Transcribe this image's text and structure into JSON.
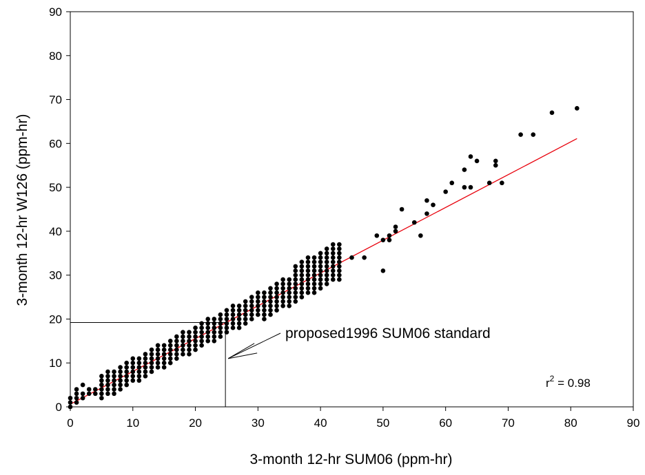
{
  "chart_data": {
    "type": "scatter",
    "title": "",
    "xlabel": "3-month 12-hr SUM06 (ppm-hr)",
    "ylabel": "3-month 12-hr W126 (ppm-hr)",
    "xlim": [
      0,
      90
    ],
    "ylim": [
      0,
      90
    ],
    "xticks": [
      "0",
      "10",
      "20",
      "30",
      "40",
      "50",
      "60",
      "70",
      "80",
      "90"
    ],
    "yticks": [
      "0",
      "10",
      "20",
      "30",
      "40",
      "50",
      "60",
      "70",
      "80",
      "90"
    ],
    "grid": false,
    "point_color": "#000000",
    "trendline": {
      "x": [
        0,
        81
      ],
      "y": [
        0.6,
        61.1
      ],
      "color": "#e8000b"
    },
    "standard": {
      "x": 24.8,
      "y": 19.2
    },
    "annotation": {
      "text": "proposed1996 SUM06 standard"
    },
    "r2": {
      "prefix": "r",
      "sup": "2",
      "text": " = 0.98"
    },
    "points_sparse": [
      [
        0,
        0
      ],
      [
        0,
        1
      ],
      [
        0,
        2
      ],
      [
        1,
        1
      ],
      [
        1,
        2
      ],
      [
        1,
        3
      ],
      [
        1,
        4
      ],
      [
        2,
        2
      ],
      [
        2,
        3
      ],
      [
        2,
        5
      ],
      [
        3,
        3
      ],
      [
        3,
        4
      ],
      [
        4,
        3
      ],
      [
        4,
        4
      ],
      [
        45,
        34
      ],
      [
        47,
        34
      ],
      [
        49,
        39
      ],
      [
        50,
        38
      ],
      [
        50,
        31
      ],
      [
        51,
        38
      ],
      [
        51,
        39
      ],
      [
        52,
        40
      ],
      [
        52,
        41
      ],
      [
        53,
        45
      ],
      [
        55,
        42
      ],
      [
        56,
        39
      ],
      [
        57,
        44
      ],
      [
        57,
        47
      ],
      [
        58,
        46
      ],
      [
        60,
        49
      ],
      [
        61,
        51
      ],
      [
        63,
        50
      ],
      [
        63,
        54
      ],
      [
        64,
        50
      ],
      [
        64,
        57
      ],
      [
        65,
        56
      ],
      [
        67,
        51
      ],
      [
        68,
        55
      ],
      [
        68,
        56
      ],
      [
        69,
        51
      ],
      [
        72,
        62
      ],
      [
        74,
        62
      ],
      [
        77,
        67
      ],
      [
        81,
        68
      ]
    ],
    "dense_band": {
      "x_from": 5,
      "x_to": 43,
      "slope": 0.75,
      "intercept": 0.6
    }
  }
}
